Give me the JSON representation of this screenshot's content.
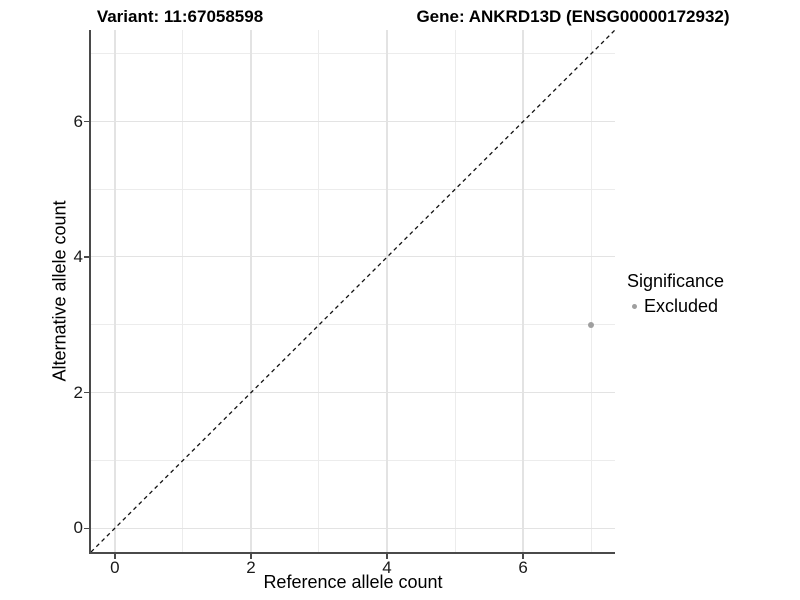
{
  "titles": {
    "variant": "Variant: 11:67058598",
    "gene": "Gene: ANKRD13D (ENSG00000172932)"
  },
  "chart_data": {
    "type": "scatter",
    "xlabel": "Reference allele count",
    "ylabel": "Alternative allele count",
    "xlim": [
      -0.35,
      7.35
    ],
    "ylim": [
      -0.35,
      7.35
    ],
    "x_ticks": [
      0,
      2,
      4,
      6
    ],
    "y_ticks": [
      0,
      2,
      4,
      6
    ],
    "x_minor_gridlines": [
      1,
      3,
      5,
      7
    ],
    "y_minor_gridlines": [
      1,
      3,
      5,
      7
    ],
    "grid": "major and minor, light gray on white",
    "points": [
      {
        "x": 7,
        "y": 3,
        "series": "Excluded"
      }
    ],
    "identity_line": {
      "slope": 1,
      "intercept": 0,
      "style": "dashed",
      "color": "#111111"
    },
    "legend": {
      "title": "Significance",
      "position": "right",
      "items": [
        {
          "label": "Excluded",
          "color": "#9f9f9f"
        }
      ]
    },
    "colors": {
      "point": "#9f9f9f",
      "grid_major": "#e3e3e3",
      "grid_minor": "#ececec",
      "axis_line": "#4a4a4a",
      "tick_text": "#1a1a1a",
      "title_text": "#000000"
    }
  }
}
